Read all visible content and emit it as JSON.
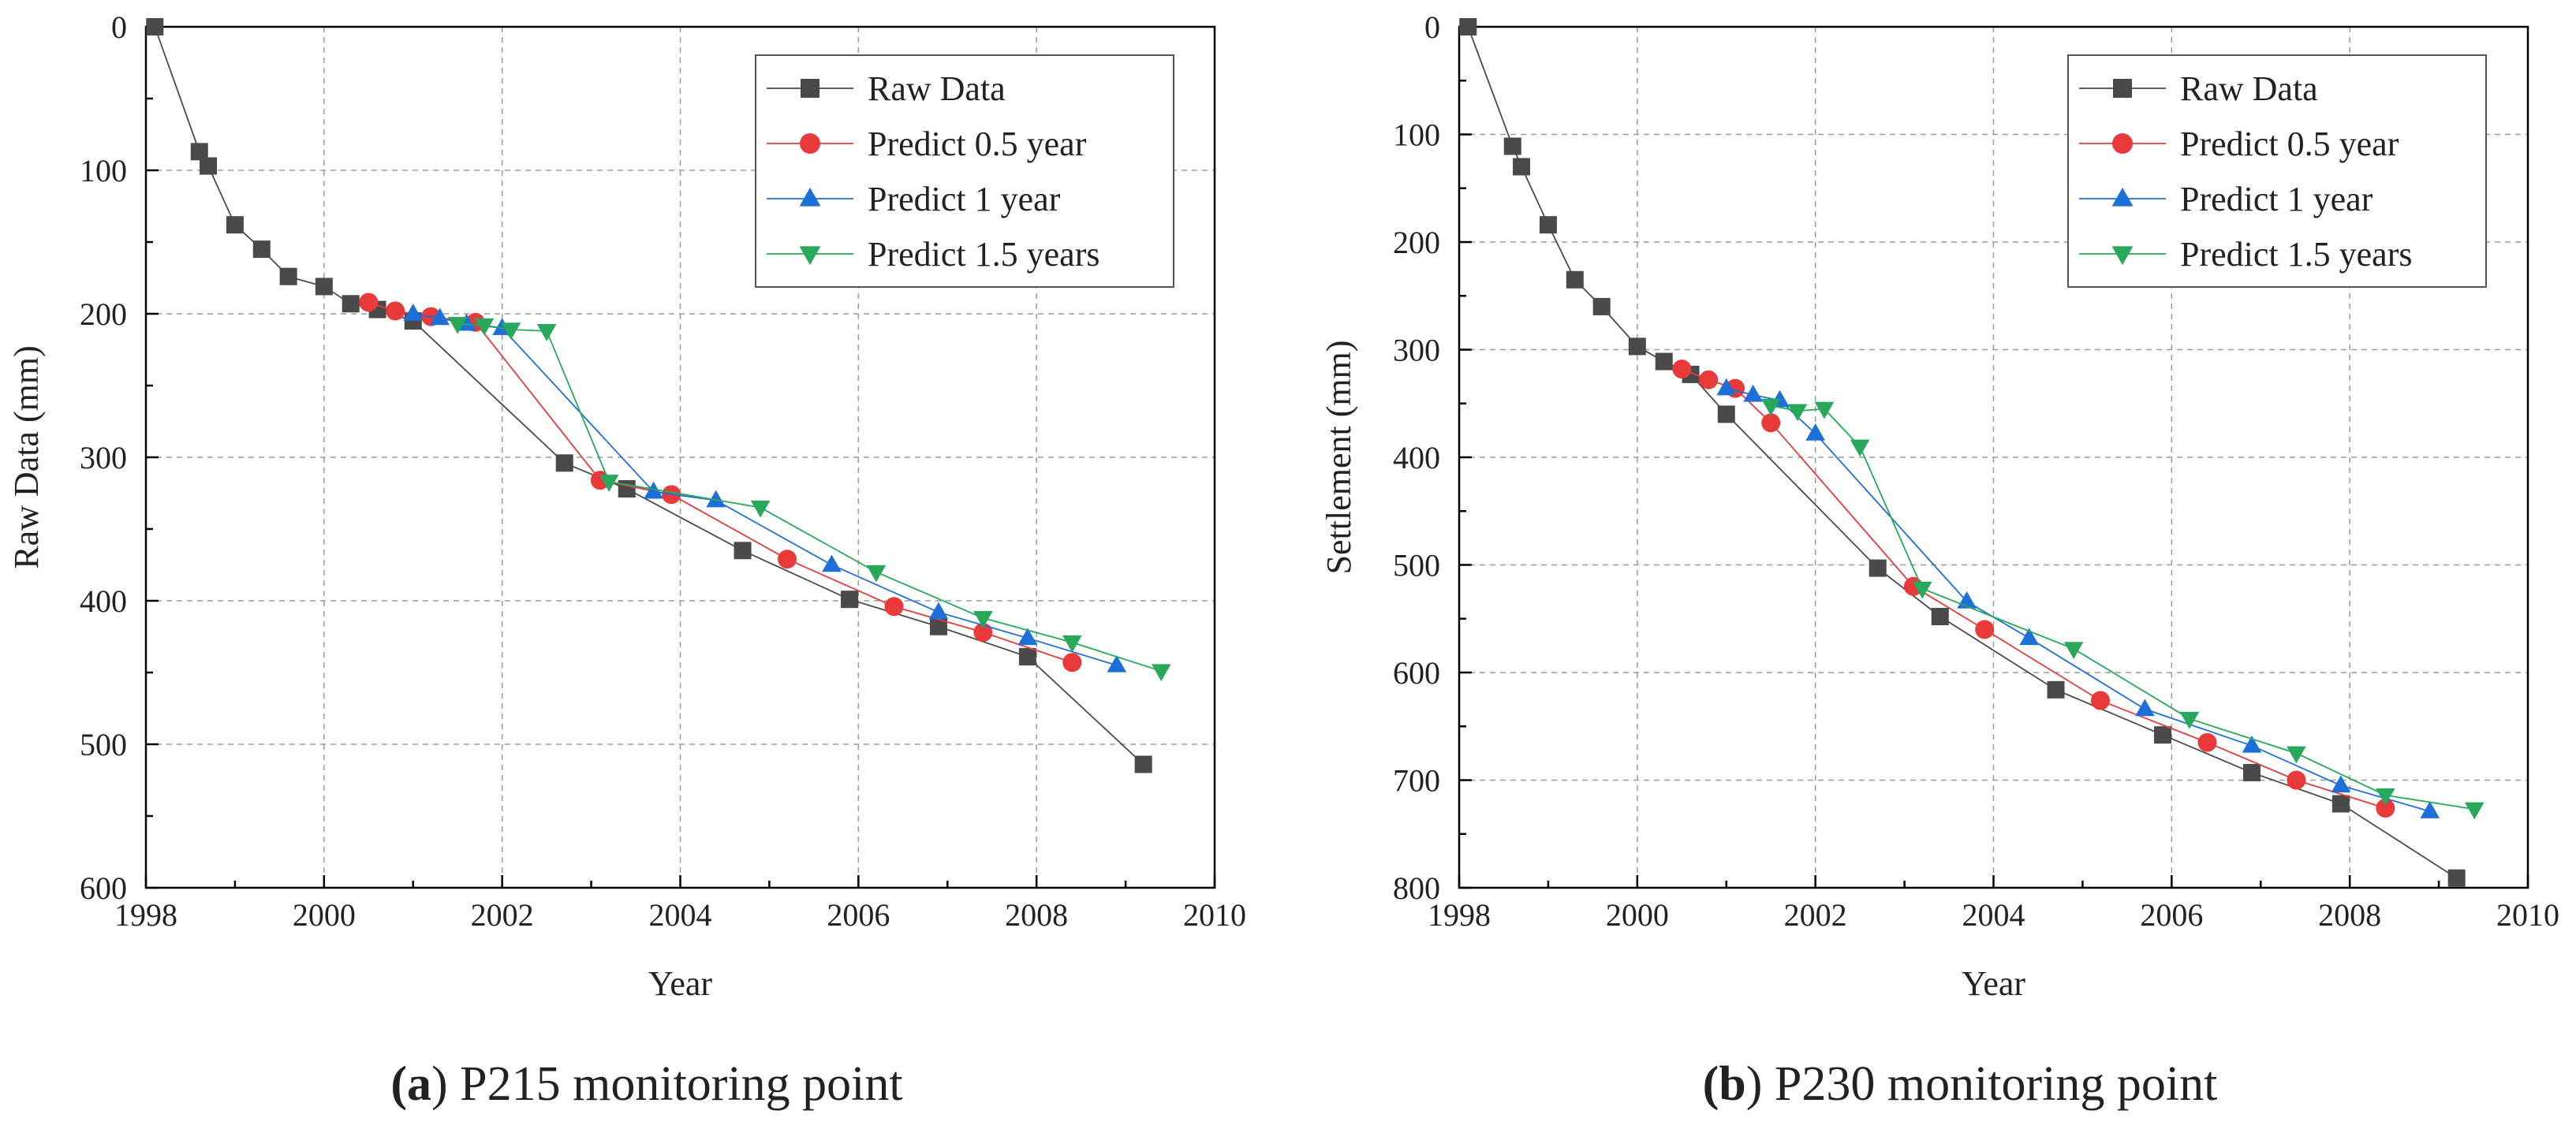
{
  "colors": {
    "raw": "#4a4a4a",
    "p05": "#e8393b",
    "p1": "#1f6fd8",
    "p15": "#27a85a",
    "grid": "#9a9a9a",
    "axis": "#000000"
  },
  "chart_data": [
    {
      "type": "line",
      "caption_letter": "(a)",
      "caption_text": " P215 monitoring point",
      "xlabel": "Year",
      "ylabel": "Raw Data (mm)",
      "xlim": [
        1998,
        2010
      ],
      "ylim": [
        0,
        600
      ],
      "y_inverted": true,
      "grid": true,
      "legend_position": "top-right",
      "x_ticks": [
        "1998",
        "2000",
        "2002",
        "2004",
        "2006",
        "2008",
        "2010"
      ],
      "y_ticks": [
        "0",
        "100",
        "200",
        "300",
        "400",
        "500",
        "600"
      ],
      "series": [
        {
          "name": "Raw Data",
          "marker": "square",
          "color_key": "raw",
          "x": [
            1998.1,
            1998.6,
            1998.7,
            1999.0,
            1999.3,
            1999.6,
            2000.0,
            2000.3,
            2000.6,
            2001.0,
            2002.7,
            2003.4,
            2004.7,
            2005.9,
            2006.9,
            2007.9,
            2009.2
          ],
          "y": [
            0,
            87,
            97,
            138,
            155,
            174,
            181,
            193,
            197,
            205,
            304,
            322,
            365,
            399,
            418,
            439,
            514
          ]
        },
        {
          "name": "Predict 0.5 year",
          "marker": "circle",
          "color_key": "p05",
          "x": [
            2000.5,
            2000.8,
            2001.2,
            2001.7,
            2003.1,
            2003.9,
            2005.2,
            2006.4,
            2007.4,
            2008.4
          ],
          "y": [
            192,
            198,
            202,
            206,
            316,
            326,
            371,
            404,
            422,
            443
          ]
        },
        {
          "name": "Predict 1 year",
          "marker": "triangle-up",
          "color_key": "p1",
          "x": [
            2001.0,
            2001.3,
            2001.6,
            2002.0,
            2003.7,
            2004.4,
            2005.7,
            2006.9,
            2007.9,
            2008.9
          ],
          "y": [
            200,
            203,
            207,
            210,
            324,
            330,
            375,
            408,
            426,
            445
          ]
        },
        {
          "name": "Predict 1.5 years",
          "marker": "triangle-down",
          "color_key": "p15",
          "x": [
            2001.5,
            2001.8,
            2002.1,
            2002.5,
            2003.2,
            2004.9,
            2006.2,
            2007.4,
            2008.4,
            2009.4
          ],
          "y": [
            207,
            208,
            211,
            212,
            317,
            335,
            380,
            412,
            429,
            449
          ]
        }
      ]
    },
    {
      "type": "line",
      "caption_letter": "(b)",
      "caption_text": " P230 monitoring point",
      "xlabel": "Year",
      "ylabel": "Settlement (mm)",
      "xlim": [
        1998,
        2010
      ],
      "ylim": [
        0,
        800
      ],
      "y_inverted": true,
      "grid": true,
      "legend_position": "top-right",
      "x_ticks": [
        "1998",
        "2000",
        "2002",
        "2004",
        "2006",
        "2008",
        "2010"
      ],
      "y_ticks": [
        "0",
        "100",
        "200",
        "300",
        "400",
        "500",
        "600",
        "700",
        "800"
      ],
      "series": [
        {
          "name": "Raw Data",
          "marker": "square",
          "color_key": "raw",
          "x": [
            1998.1,
            1998.6,
            1998.7,
            1999.0,
            1999.3,
            1999.6,
            2000.0,
            2000.3,
            2000.6,
            2001.0,
            2002.7,
            2003.4,
            2004.7,
            2005.9,
            2006.9,
            2007.9,
            2009.2
          ],
          "y": [
            0,
            111,
            130,
            184,
            235,
            260,
            297,
            311,
            323,
            360,
            503,
            548,
            616,
            658,
            693,
            722,
            791
          ]
        },
        {
          "name": "Predict 0.5 year",
          "marker": "circle",
          "color_key": "p05",
          "x": [
            2000.5,
            2000.8,
            2001.1,
            2001.5,
            2003.1,
            2003.9,
            2005.2,
            2006.4,
            2007.4,
            2008.4
          ],
          "y": [
            318,
            328,
            336,
            368,
            520,
            560,
            626,
            665,
            700,
            726
          ]
        },
        {
          "name": "Predict 1 year",
          "marker": "triangle-up",
          "color_key": "p1",
          "x": [
            2001.0,
            2001.3,
            2001.6,
            2002.0,
            2003.7,
            2004.4,
            2005.7,
            2006.9,
            2007.9,
            2008.9
          ],
          "y": [
            336,
            342,
            347,
            378,
            534,
            568,
            634,
            668,
            705,
            729
          ]
        },
        {
          "name": "Predict 1.5 years",
          "marker": "triangle-down",
          "color_key": "p15",
          "x": [
            2001.5,
            2001.8,
            2002.1,
            2002.5,
            2003.2,
            2004.9,
            2006.2,
            2007.4,
            2008.4,
            2009.4
          ],
          "y": [
            352,
            357,
            355,
            390,
            522,
            578,
            643,
            675,
            714,
            727
          ]
        }
      ]
    }
  ]
}
